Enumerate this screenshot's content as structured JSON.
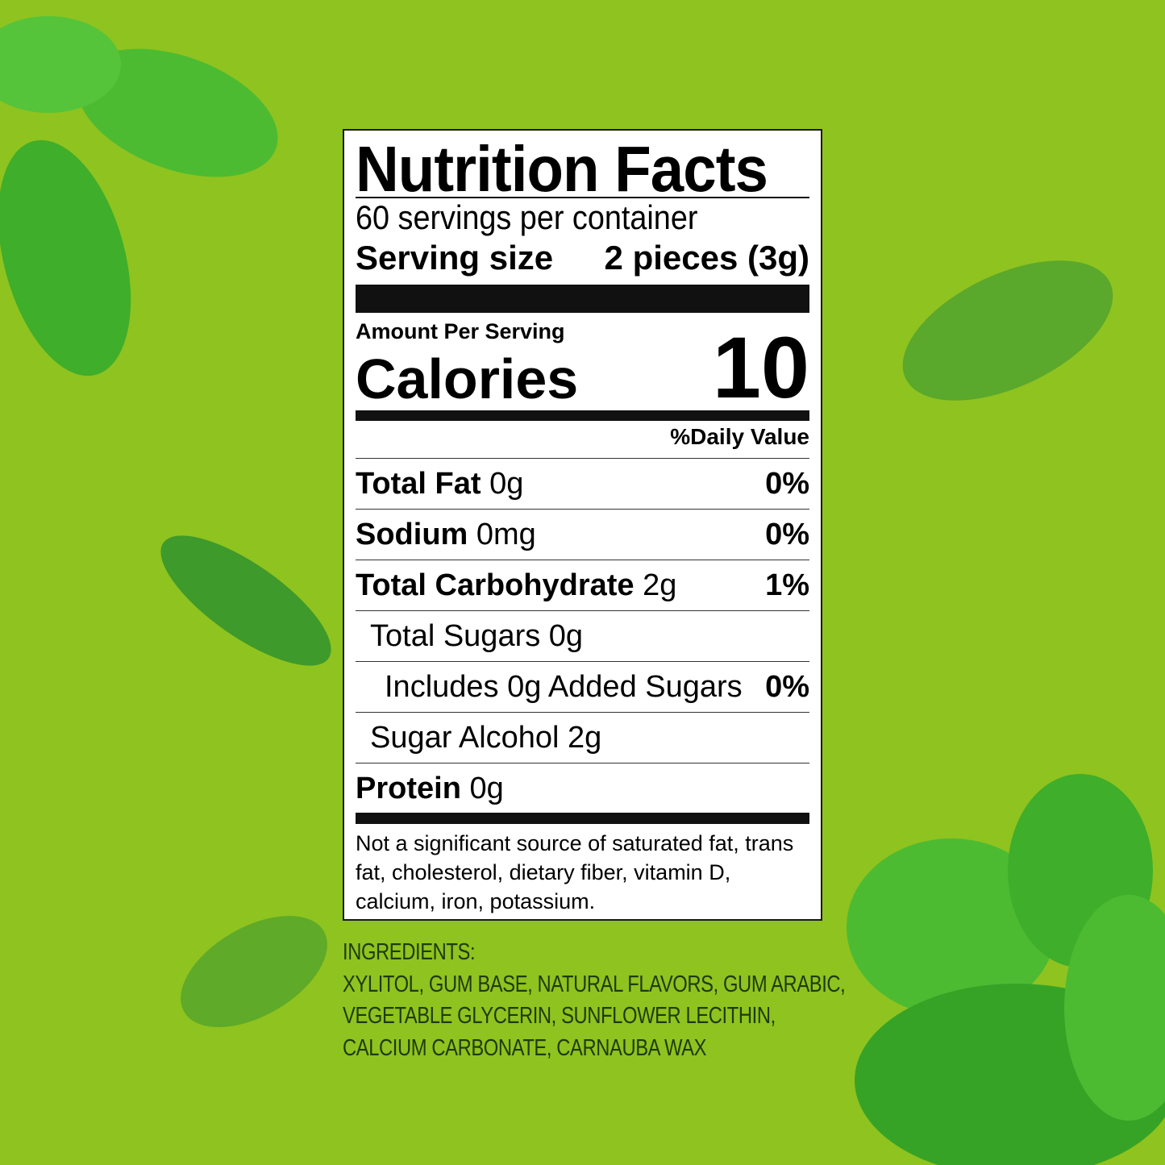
{
  "background_color": "#8fc31f",
  "label": {
    "title": "Nutrition Facts",
    "servings_per_container": "60 servings per container",
    "serving_size_label": "Serving size",
    "serving_size_value": "2 pieces (3g)",
    "amount_per_serving": "Amount Per Serving",
    "calories_label": "Calories",
    "calories_value": "10",
    "daily_value_header": "%Daily Value",
    "nutrients": [
      {
        "name": "Total Fat",
        "amount": "0g",
        "dv": "0%"
      },
      {
        "name": "Sodium",
        "amount": "0mg",
        "dv": "0%"
      },
      {
        "name": "Total Carbohydrate",
        "amount": "2g",
        "dv": "1%"
      },
      {
        "name": "Total Sugars 0g",
        "amount": "",
        "dv": ""
      },
      {
        "name": "Includes 0g Added Sugars",
        "amount": "",
        "dv": "0%"
      },
      {
        "name": "Sugar Alcohol 2g",
        "amount": "",
        "dv": ""
      },
      {
        "name": "Protein",
        "amount": "0g",
        "dv": ""
      }
    ],
    "footnote": "Not a significant source of saturated fat, trans fat, cholesterol, dietary fiber, vitamin D, calcium, iron, potassium."
  },
  "ingredients": {
    "heading": "INGREDIENTS:",
    "lines": [
      "XYLITOL, GUM BASE, NATURAL FLAVORS, GUM ARABIC,",
      "VEGETABLE GLYCERIN, SUNFLOWER LECITHIN,",
      "CALCIUM CARBONATE, CARNAUBA WAX"
    ]
  }
}
